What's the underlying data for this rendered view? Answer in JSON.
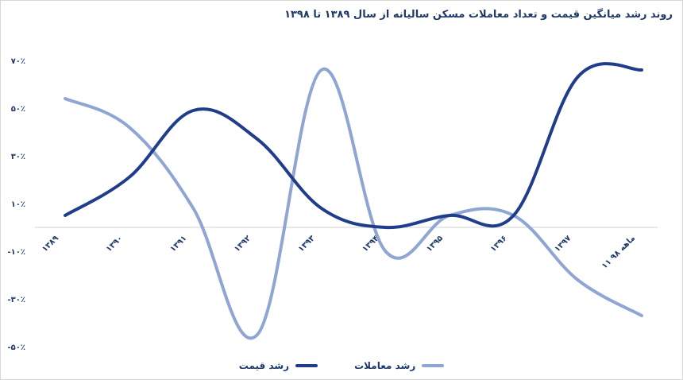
{
  "chart_data": {
    "type": "line",
    "title": "روند رشد میانگین قیمت و تعداد معاملات مسکن سالیانه از سال ۱۳۸۹ تا ۱۳۹۸",
    "categories": [
      "۱۳۸۹",
      "۱۳۹۰",
      "۱۳۹۱",
      "۱۳۹۲",
      "۱۳۹۳",
      "۱۳۹۴",
      "۱۳۹۵",
      "۱۳۹۶",
      "۱۳۹۷",
      "۱۱ ماهه ۹۸"
    ],
    "y_ticks": [
      70,
      50,
      30,
      10,
      -10,
      -30,
      -50
    ],
    "y_tick_labels": [
      "۷۰٪",
      "۵۰٪",
      "۳۰٪",
      "۱۰٪",
      "-۱۰٪",
      "-۳۰٪",
      "-۵۰٪"
    ],
    "ylim": [
      -50,
      70
    ],
    "grid": false,
    "legend_position": "bottom",
    "series": [
      {
        "name": "رشد معاملات",
        "color": "#8fa5d3",
        "values": [
          54,
          42,
          8,
          -45,
          66,
          -10,
          5,
          5,
          -22,
          -37
        ]
      },
      {
        "name": "رشد قیمت",
        "color": "#1f3d8a",
        "values": [
          5,
          21,
          49,
          37,
          8,
          0,
          5,
          5,
          63,
          66
        ]
      }
    ]
  }
}
